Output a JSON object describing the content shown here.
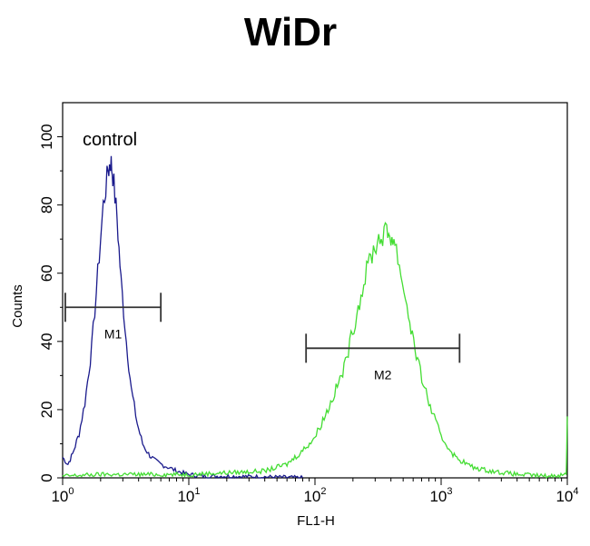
{
  "chart_data": {
    "type": "line",
    "title": "WiDr",
    "xlabel": "FL1-H",
    "ylabel": "Counts",
    "x_scale": "log",
    "xlim": [
      1,
      10000
    ],
    "ylim": [
      0,
      110
    ],
    "x_ticks": [
      {
        "value": 1,
        "base": "10",
        "exp": "0"
      },
      {
        "value": 10,
        "base": "10",
        "exp": "1"
      },
      {
        "value": 100,
        "base": "10",
        "exp": "2"
      },
      {
        "value": 1000,
        "base": "10",
        "exp": "3"
      },
      {
        "value": 10000,
        "base": "10",
        "exp": "4"
      }
    ],
    "y_ticks": [
      "0",
      "20",
      "40",
      "60",
      "80",
      "100"
    ],
    "grid": false,
    "annotation": "control",
    "series": [
      {
        "color": "#1a1a8c",
        "x": [
          1.0,
          1.1,
          1.2,
          1.35,
          1.5,
          1.7,
          1.9,
          2.1,
          2.3,
          2.4,
          2.5,
          2.7,
          2.9,
          3.2,
          3.5,
          3.9,
          4.3,
          4.8,
          5.4,
          6.0,
          7.0,
          8.0,
          10.0,
          13.0,
          20.0,
          40.0,
          80.0
        ],
        "y": [
          6,
          4,
          7,
          13,
          22,
          38,
          60,
          80,
          90,
          93,
          89,
          76,
          58,
          40,
          26,
          16,
          10,
          7,
          5,
          4,
          3,
          2,
          1,
          0.5,
          0.5,
          0.3,
          0
        ]
      },
      {
        "color": "#44dd33",
        "x": [
          1.0,
          2.0,
          5.0,
          10.0,
          20.0,
          40.0,
          60.0,
          80.0,
          100.0,
          130.0,
          170.0,
          220.0,
          270.0,
          320.0,
          370.0,
          400.0,
          430.0,
          480.0,
          550.0,
          650.0,
          800.0,
          1000.0,
          1300.0,
          1800.0,
          2500.0,
          4000.0,
          7000.0,
          9800.0,
          10000.0
        ],
        "y": [
          0.5,
          1,
          1,
          1,
          1.5,
          2,
          4,
          8,
          12,
          21,
          32,
          50,
          64,
          70,
          72,
          71,
          69,
          60,
          48,
          34,
          22,
          12,
          6,
          3,
          2,
          1,
          0.5,
          1,
          18
        ]
      }
    ],
    "gates": [
      {
        "label": "M1",
        "x_start": 1.05,
        "x_end": 6.0,
        "y": 50
      },
      {
        "label": "M2",
        "x_start": 85.0,
        "x_end": 1400.0,
        "y": 38
      }
    ]
  }
}
